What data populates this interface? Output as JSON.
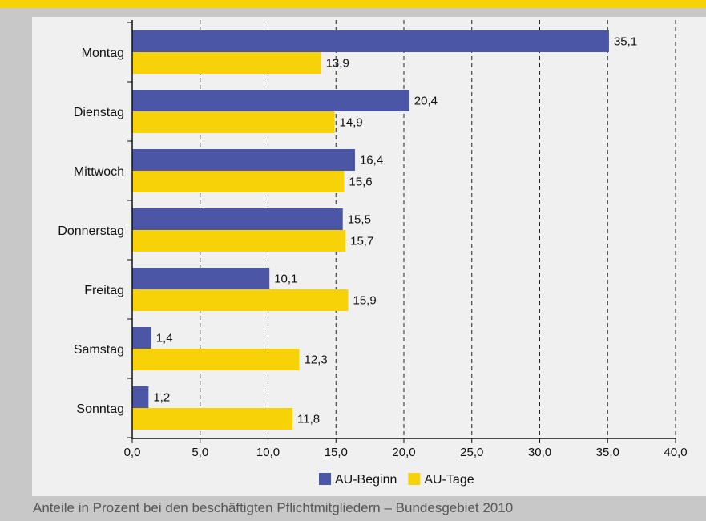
{
  "chart_data": {
    "type": "bar",
    "orientation": "horizontal",
    "categories": [
      "Montag",
      "Dienstag",
      "Mittwoch",
      "Donnerstag",
      "Freitag",
      "Samstag",
      "Sonntag"
    ],
    "series": [
      {
        "name": "AU-Beginn",
        "color": "#4b57a6",
        "values": [
          35.1,
          20.4,
          16.4,
          15.5,
          10.1,
          1.4,
          1.2
        ],
        "labels": [
          "35,1",
          "20,4",
          "16,4",
          "15,5",
          "10,1",
          "1,4",
          "1,2"
        ]
      },
      {
        "name": "AU-Tage",
        "color": "#f7d208",
        "values": [
          13.9,
          14.9,
          15.6,
          15.7,
          15.9,
          12.3,
          11.8
        ],
        "labels": [
          "13,9",
          "14,9",
          "15,6",
          "15,7",
          "15,9",
          "12,3",
          "11,8"
        ]
      }
    ],
    "xlim": [
      0,
      40
    ],
    "xticks": [
      0,
      5,
      10,
      15,
      20,
      25,
      30,
      35,
      40
    ],
    "xtick_labels": [
      "0,0",
      "5,0",
      "10,0",
      "15,0",
      "20,0",
      "25,0",
      "30,0",
      "35,0",
      "40,0"
    ],
    "grid": "vertical dashed",
    "legend_position": "bottom"
  },
  "caption": "Anteile in Prozent bei den beschäftigten Pflichtmitgliedern – Bundesgebiet 2010",
  "colors": {
    "top_strip": "#f7d208",
    "frame": "#c8c8c8",
    "panel": "#f0f0f0"
  }
}
